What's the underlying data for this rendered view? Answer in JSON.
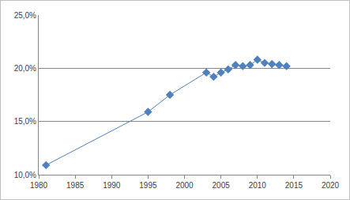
{
  "chart_data": {
    "type": "line",
    "x": [
      1981,
      1995,
      1998,
      2003,
      2004,
      2005,
      2006,
      2007,
      2008,
      2009,
      2010,
      2011,
      2012,
      2013,
      2014
    ],
    "values": [
      10.9,
      15.9,
      17.5,
      19.6,
      19.2,
      19.6,
      19.9,
      20.3,
      20.2,
      20.3,
      20.8,
      20.5,
      20.4,
      20.3,
      20.2
    ],
    "color": "#4f81bd",
    "marker": "diamond",
    "line_style": "solid",
    "xlim": [
      1980,
      2020
    ],
    "xticks": [
      1980,
      1985,
      1990,
      1995,
      2000,
      2005,
      2010,
      2015,
      2020
    ],
    "ylim": [
      10,
      25
    ],
    "yticks": [
      {
        "value": 10,
        "label": "10,0%"
      },
      {
        "value": 15,
        "label": "15,0%"
      },
      {
        "value": 20,
        "label": "20,0%"
      },
      {
        "value": 25,
        "label": "25,0%"
      }
    ],
    "grid": true
  }
}
